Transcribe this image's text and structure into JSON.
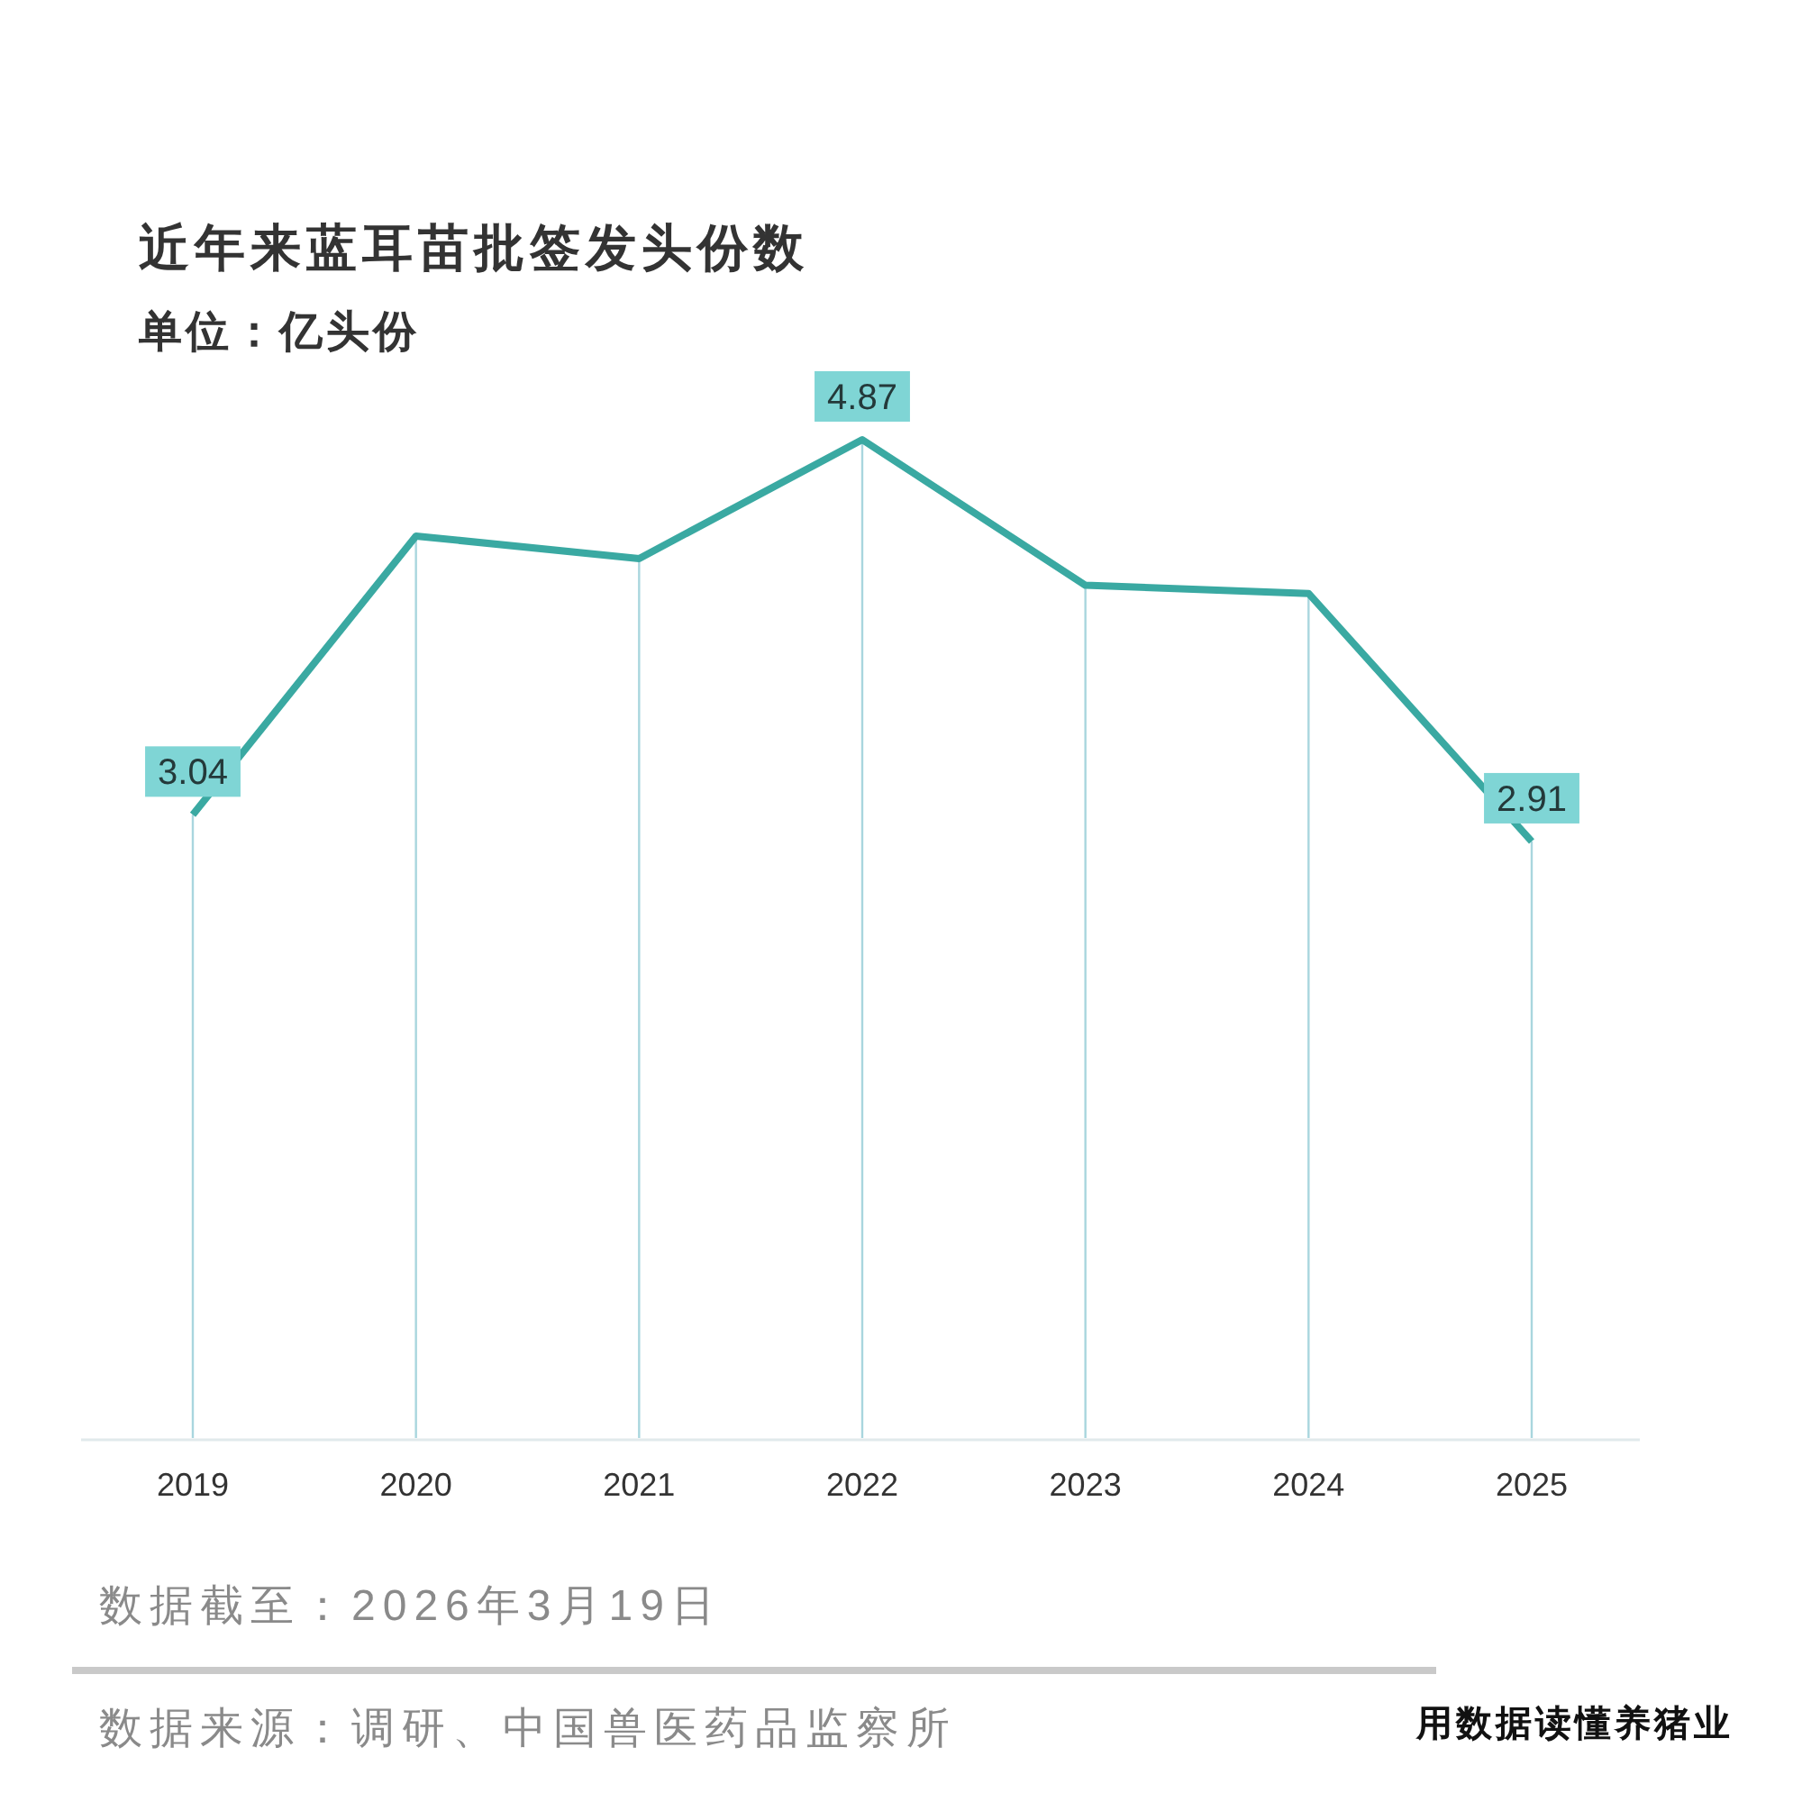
{
  "chart_data": {
    "type": "line",
    "title": "近年来蓝耳苗批签发头份数",
    "subtitle": "单位：亿头份",
    "categories": [
      "2019",
      "2020",
      "2021",
      "2022",
      "2023",
      "2024",
      "2025"
    ],
    "values": [
      3.04,
      4.4,
      4.29,
      4.87,
      4.16,
      4.12,
      2.91
    ],
    "value_labels": [
      "3.04",
      null,
      null,
      "4.87",
      null,
      null,
      "2.91"
    ],
    "color": "#3aa9a2",
    "line_style": "solid",
    "grid": "x",
    "tick_labels": "x",
    "annotations": [
      "数据截至：2026年3月19日",
      "数据来源：调研、中国兽医药品监察所",
      "用数据读懂养猪业"
    ]
  }
}
